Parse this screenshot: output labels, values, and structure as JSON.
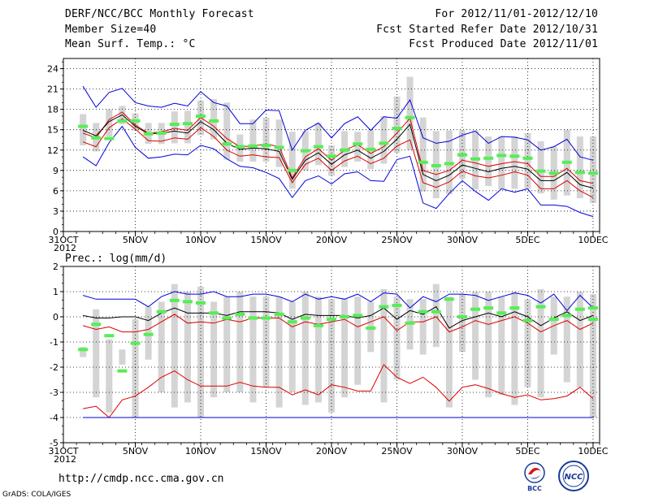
{
  "header": {
    "title": "DERF/NCC/BCC Monthly Forecast",
    "member_size": "Member Size=40",
    "variable": "Mean Surf. Temp.: °C",
    "period": "For 2012/11/01-2012/12/10",
    "fcst_started": "Fcst Started Refer Date 2012/10/31",
    "fcst_produced": "Fcst Produced Date 2012/11/01"
  },
  "footer": {
    "url": "http://cmdp.ncc.cma.gov.cn",
    "credit": "GrADS: COLA/IGES",
    "logo_bcc": "BCC",
    "logo_ncc": "NCC"
  },
  "colors": {
    "blue": "#0000dd",
    "red": "#dd0000",
    "black": "#000000",
    "green": "#55ee55",
    "box": "#d4d4d4",
    "grid": "#000000"
  },
  "chart_data": [
    {
      "type": "line",
      "title": "Mean Surf. Temp.: °C",
      "ylim": [
        0,
        25.5
      ],
      "yticks": [
        0,
        3,
        6,
        9,
        12,
        15,
        18,
        21,
        24
      ],
      "xticks": [
        {
          "day": 0,
          "label": "31OCT",
          "label2": "2012"
        },
        {
          "day": 5,
          "label": "5NOV"
        },
        {
          "day": 10,
          "label": "10NOV"
        },
        {
          "day": 15,
          "label": "15NOV"
        },
        {
          "day": 20,
          "label": "20NOV"
        },
        {
          "day": 25,
          "label": "25NOV"
        },
        {
          "day": 30,
          "label": "30NOV"
        },
        {
          "day": 35,
          "label": "5DEC"
        },
        {
          "day": 40,
          "label": "10DEC"
        }
      ],
      "days": [
        1,
        2,
        3,
        4,
        5,
        6,
        7,
        8,
        9,
        10,
        11,
        12,
        13,
        14,
        15,
        16,
        17,
        18,
        19,
        20,
        21,
        22,
        23,
        24,
        25,
        26,
        27,
        28,
        29,
        30,
        31,
        32,
        33,
        34,
        35,
        36,
        37,
        38,
        39,
        40
      ],
      "series": [
        {
          "name": "max",
          "color": "blue",
          "values": [
            21.4,
            18.3,
            20.5,
            21.1,
            19.0,
            18.5,
            18.3,
            18.9,
            18.5,
            20.6,
            19.0,
            18.5,
            15.9,
            15.9,
            17.9,
            17.8,
            12.0,
            14.9,
            16.0,
            13.8,
            15.9,
            16.9,
            14.9,
            16.9,
            16.7,
            19.4,
            13.8,
            13.0,
            13.3,
            14.2,
            14.8,
            13.0,
            14.0,
            13.9,
            13.5,
            12.0,
            12.5,
            13.6,
            11.0,
            10.5
          ]
        },
        {
          "name": "upper",
          "color": "red",
          "values": [
            14.5,
            13.8,
            16.5,
            17.6,
            15.7,
            14.5,
            14.7,
            15.2,
            14.9,
            16.8,
            15.5,
            13.7,
            12.5,
            12.6,
            12.9,
            12.5,
            7.9,
            11.0,
            12.2,
            10.5,
            12.0,
            12.8,
            11.5,
            12.5,
            14.5,
            16.7,
            9.0,
            8.4,
            9.0,
            10.5,
            10.1,
            9.6,
            10.0,
            10.3,
            10.0,
            8.1,
            8.1,
            9.3,
            7.5,
            7.1
          ]
        },
        {
          "name": "mean",
          "color": "black",
          "values": [
            14.9,
            14.1,
            16.2,
            17.2,
            15.5,
            14.4,
            14.5,
            14.8,
            14.5,
            16.2,
            15.0,
            13.0,
            12.1,
            12.3,
            12.2,
            11.8,
            7.7,
            10.5,
            11.6,
            9.9,
            11.3,
            12.0,
            10.8,
            11.8,
            13.6,
            15.8,
            8.4,
            7.5,
            8.3,
            9.8,
            9.3,
            8.8,
            9.3,
            9.6,
            9.2,
            7.5,
            7.5,
            8.7,
            6.9,
            6.4
          ]
        },
        {
          "name": "lower",
          "color": "red",
          "values": [
            13.2,
            12.5,
            15.3,
            16.6,
            15.1,
            13.4,
            13.3,
            13.8,
            13.6,
            15.3,
            14.0,
            12.0,
            11.1,
            11.3,
            11.0,
            10.9,
            7.2,
            9.9,
            10.8,
            9.0,
            10.4,
            11.1,
            10.0,
            10.8,
            12.6,
            13.5,
            7.2,
            6.5,
            7.3,
            8.9,
            8.2,
            7.9,
            8.3,
            8.8,
            8.3,
            6.3,
            6.3,
            7.5,
            6.0,
            5.0
          ]
        },
        {
          "name": "min",
          "color": "blue",
          "values": [
            11.0,
            9.7,
            13.1,
            15.5,
            12.4,
            10.8,
            11.0,
            11.4,
            11.3,
            12.7,
            12.2,
            10.7,
            9.6,
            9.4,
            8.7,
            7.8,
            5.0,
            7.5,
            8.2,
            7.0,
            8.5,
            8.8,
            7.5,
            7.4,
            10.6,
            11.1,
            4.2,
            3.4,
            5.6,
            7.5,
            5.9,
            4.6,
            6.3,
            5.8,
            6.3,
            3.9,
            3.9,
            3.7,
            2.8,
            2.2
          ]
        },
        {
          "name": "observed",
          "color": "green",
          "values": [
            15.5,
            13.8,
            13.7,
            16.3,
            16.3,
            14.4,
            14.5,
            15.8,
            15.9,
            17.0,
            16.3,
            12.9,
            12.5,
            12.6,
            12.7,
            12.4,
            9.0,
            11.9,
            12.5,
            11.1,
            12.0,
            12.9,
            12.1,
            13.0,
            15.2,
            16.8,
            10.2,
            9.7,
            10.0,
            11.3,
            10.7,
            10.8,
            11.2,
            11.1,
            10.8,
            8.9,
            8.6,
            10.2,
            8.7,
            8.6
          ]
        }
      ],
      "boxes": {
        "low": [
          12.7,
          11.8,
          14.0,
          15.8,
          14.9,
          12.9,
          12.9,
          13.0,
          13.0,
          14.2,
          13.6,
          10.6,
          10.3,
          10.3,
          10.3,
          9.5,
          6.3,
          9.0,
          9.8,
          8.2,
          9.5,
          10.3,
          9.2,
          10.0,
          11.6,
          12.0,
          5.9,
          4.9,
          5.5,
          7.8,
          6.2,
          6.7,
          6.2,
          6.3,
          6.3,
          5.6,
          4.7,
          5.3,
          4.9,
          4.2
        ],
        "high": [
          17.3,
          16.0,
          18.0,
          18.5,
          17.4,
          16.0,
          16.0,
          17.7,
          17.8,
          19.3,
          19.5,
          19.0,
          14.3,
          16.5,
          16.8,
          16.5,
          14.7,
          14.8,
          16.0,
          12.7,
          14.8,
          14.7,
          14.9,
          17.0,
          19.9,
          22.8,
          16.8,
          14.8,
          14.9,
          14.9,
          14.9,
          14.0,
          14.0,
          14.0,
          14.5,
          13.3,
          12.5,
          15.0,
          14.0,
          14.0
        ]
      }
    },
    {
      "type": "line",
      "title": "Prec.: log(mm/d)",
      "ylim": [
        -5,
        2
      ],
      "yticks": [
        -5,
        -4,
        -3,
        -2,
        -1,
        0,
        1,
        2
      ],
      "xticks": [
        {
          "day": 0,
          "label": "31OCT",
          "label2": "2012"
        },
        {
          "day": 5,
          "label": "5NOV"
        },
        {
          "day": 10,
          "label": "10NOV"
        },
        {
          "day": 15,
          "label": "15NOV"
        },
        {
          "day": 20,
          "label": "20NOV"
        },
        {
          "day": 25,
          "label": "25NOV"
        },
        {
          "day": 30,
          "label": "30NOV"
        },
        {
          "day": 35,
          "label": "5DEC"
        },
        {
          "day": 40,
          "label": "10DEC"
        }
      ],
      "days": [
        1,
        2,
        3,
        4,
        5,
        6,
        7,
        8,
        9,
        10,
        11,
        12,
        13,
        14,
        15,
        16,
        17,
        18,
        19,
        20,
        21,
        22,
        23,
        24,
        25,
        26,
        27,
        28,
        29,
        30,
        31,
        32,
        33,
        34,
        35,
        36,
        37,
        38,
        39,
        40
      ],
      "series": [
        {
          "name": "max",
          "color": "blue",
          "values": [
            0.85,
            0.7,
            0.7,
            0.7,
            0.7,
            0.4,
            0.8,
            1.0,
            0.9,
            0.9,
            1.0,
            0.8,
            0.8,
            0.9,
            0.9,
            0.8,
            0.6,
            0.9,
            0.7,
            0.8,
            0.7,
            0.9,
            0.6,
            0.95,
            0.9,
            0.35,
            0.8,
            0.6,
            0.9,
            0.9,
            0.85,
            0.65,
            0.8,
            0.95,
            0.85,
            0.55,
            0.9,
            0.25,
            0.85,
            0.35
          ]
        },
        {
          "name": "upper",
          "color": "red",
          "values": [
            -0.35,
            -0.5,
            -0.4,
            -0.6,
            -0.6,
            -0.5,
            -0.2,
            0.1,
            -0.25,
            -0.2,
            -0.25,
            -0.1,
            -0.2,
            -0.05,
            -0.05,
            -0.05,
            -0.4,
            -0.2,
            -0.3,
            -0.2,
            -0.1,
            -0.4,
            -0.2,
            0.0,
            -0.55,
            -0.2,
            -0.2,
            0.0,
            -0.6,
            -0.4,
            -0.15,
            -0.3,
            -0.15,
            0.0,
            -0.25,
            -0.6,
            -0.35,
            -0.15,
            -0.5,
            -0.25
          ]
        },
        {
          "name": "mean",
          "color": "black",
          "values": [
            0.05,
            -0.05,
            -0.05,
            0.0,
            0.0,
            -0.15,
            0.15,
            0.35,
            0.15,
            0.15,
            0.15,
            0.05,
            0.2,
            0.2,
            0.2,
            0.15,
            -0.1,
            0.1,
            0.05,
            0.05,
            0.05,
            -0.05,
            0.05,
            0.35,
            -0.1,
            0.25,
            0.1,
            0.4,
            -0.45,
            -0.15,
            0.0,
            0.15,
            0.0,
            0.2,
            0.0,
            -0.35,
            -0.05,
            0.2,
            -0.15,
            0.05
          ]
        },
        {
          "name": "lower",
          "color": "red",
          "values": [
            -3.65,
            -3.55,
            -4.0,
            -3.3,
            -3.15,
            -2.8,
            -2.4,
            -2.15,
            -2.5,
            -2.75,
            -2.75,
            -2.75,
            -2.6,
            -2.75,
            -2.8,
            -2.8,
            -3.1,
            -2.9,
            -3.1,
            -2.7,
            -2.8,
            -2.95,
            -2.95,
            -1.9,
            -2.4,
            -2.65,
            -2.4,
            -2.8,
            -3.35,
            -2.8,
            -2.7,
            -2.85,
            -3.05,
            -3.2,
            -3.1,
            -3.3,
            -3.25,
            -3.15,
            -2.8,
            -3.25
          ]
        },
        {
          "name": "min",
          "color": "blue",
          "values": [
            -4.0,
            -4.0,
            -4.0,
            -4.0,
            -4.0,
            -4.0,
            -4.0,
            -4.0,
            -4.0,
            -4.0,
            -4.0,
            -4.0,
            -4.0,
            -4.0,
            -4.0,
            -4.0,
            -4.0,
            -4.0,
            -4.0,
            -4.0,
            -4.0,
            -4.0,
            -4.0,
            -4.0,
            -4.0,
            -4.0,
            -4.0,
            -4.0,
            -4.0,
            -4.0,
            -4.0,
            -4.0,
            -4.0,
            -4.0,
            -4.0,
            -4.0,
            -4.0,
            -4.0,
            -4.0,
            -4.0
          ]
        },
        {
          "name": "observed",
          "color": "green",
          "values": [
            -1.3,
            -0.3,
            -0.75,
            -2.15,
            -1.05,
            -0.7,
            0.2,
            0.65,
            0.6,
            0.55,
            0.15,
            -0.05,
            0.1,
            -0.05,
            -0.05,
            0.1,
            -0.2,
            -0.05,
            -0.35,
            -0.1,
            0.0,
            0.05,
            -0.45,
            0.4,
            0.45,
            -0.25,
            0.2,
            0.2,
            0.7,
            0.0,
            0.3,
            0.35,
            0.15,
            0.35,
            -0.15,
            0.4,
            -0.1,
            0.05,
            0.3,
            -0.1
          ]
        },
        {
          "name": "observed2",
          "color": "green",
          "values": [
            null,
            null,
            null,
            null,
            null,
            null,
            null,
            null,
            null,
            null,
            null,
            null,
            null,
            null,
            null,
            null,
            null,
            null,
            null,
            null,
            null,
            null,
            null,
            null,
            null,
            null,
            null,
            null,
            null,
            null,
            null,
            null,
            null,
            null,
            null,
            null,
            null,
            null,
            null,
            0.35
          ]
        }
      ],
      "boxes": {
        "low": [
          -1.6,
          -3.2,
          -3.8,
          -1.9,
          -4.0,
          -1.7,
          -3.0,
          -3.6,
          -3.4,
          -4.0,
          -3.2,
          -3.0,
          -3.0,
          -3.4,
          -2.8,
          -3.6,
          -3.0,
          -3.5,
          -3.4,
          -3.8,
          -3.2,
          -2.7,
          -1.4,
          -3.4,
          -2.5,
          -1.3,
          -1.5,
          -1.2,
          -3.6,
          -1.4,
          -2.5,
          -3.2,
          -3.1,
          -3.5,
          -2.8,
          -3.2,
          -1.5,
          -2.6,
          -2.8,
          -4.0
        ],
        "high": [
          -1.2,
          0.3,
          -0.9,
          -1.3,
          -0.1,
          0.4,
          0.6,
          1.3,
          1.0,
          1.2,
          0.6,
          0.8,
          1.0,
          0.8,
          0.8,
          0.8,
          0.6,
          1.0,
          0.8,
          0.7,
          0.7,
          0.8,
          0.6,
          1.1,
          0.8,
          0.7,
          0.7,
          1.3,
          0.8,
          0.9,
          1.0,
          1.0,
          0.8,
          1.0,
          0.7,
          1.1,
          0.8,
          0.8,
          1.0,
          0.9
        ]
      }
    }
  ]
}
